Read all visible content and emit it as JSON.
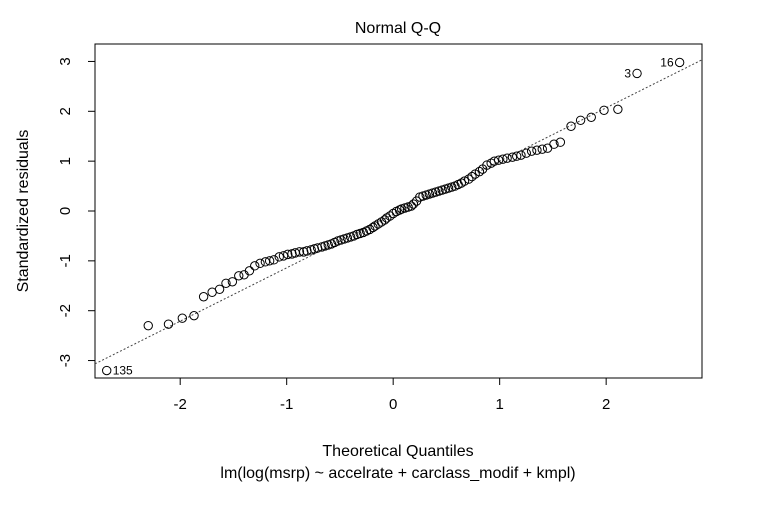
{
  "chart_data": {
    "type": "scatter",
    "title": "Normal Q-Q",
    "xlabel": "Theoretical Quantiles",
    "ylabel": "Standardized residuals",
    "subtitle": "lm(log(msrp) ~ accelrate + carclass_modif + kmpl)",
    "xlim": [
      -2.8,
      2.9
    ],
    "ylim": [
      -3.35,
      3.35
    ],
    "x_ticks": [
      -2,
      -1,
      0,
      1,
      2
    ],
    "y_ticks": [
      -3,
      -2,
      -1,
      0,
      1,
      2,
      3
    ],
    "x_tick_labels": [
      "-2",
      "-1",
      "0",
      "1",
      "2"
    ],
    "y_tick_labels": [
      "-3",
      "-2",
      "-1",
      "0",
      "1",
      "2",
      "3"
    ],
    "grid": false,
    "reference_line": {
      "slope": 1.07,
      "intercept": -0.07,
      "style": "dotted"
    },
    "labeled_points": [
      {
        "label": "135",
        "x": -2.69,
        "y": -3.2,
        "side": "right"
      },
      {
        "label": "3",
        "x": 2.29,
        "y": 2.76,
        "side": "left"
      },
      {
        "label": "16",
        "x": 2.69,
        "y": 2.98,
        "side": "left"
      }
    ],
    "points": [
      [
        -2.69,
        -3.2
      ],
      [
        -2.3,
        -2.3
      ],
      [
        -2.11,
        -2.27
      ],
      [
        -1.98,
        -2.15
      ],
      [
        -1.87,
        -2.1
      ],
      [
        -1.78,
        -1.72
      ],
      [
        -1.7,
        -1.63
      ],
      [
        -1.63,
        -1.57
      ],
      [
        -1.57,
        -1.45
      ],
      [
        -1.51,
        -1.42
      ],
      [
        -1.45,
        -1.3
      ],
      [
        -1.4,
        -1.28
      ],
      [
        -1.35,
        -1.2
      ],
      [
        -1.3,
        -1.1
      ],
      [
        -1.25,
        -1.05
      ],
      [
        -1.2,
        -1.02
      ],
      [
        -1.16,
        -1.0
      ],
      [
        -1.12,
        -0.98
      ],
      [
        -1.07,
        -0.92
      ],
      [
        -1.03,
        -0.9
      ],
      [
        -0.99,
        -0.87
      ],
      [
        -0.95,
        -0.86
      ],
      [
        -0.92,
        -0.84
      ],
      [
        -0.88,
        -0.82
      ],
      [
        -0.84,
        -0.82
      ],
      [
        -0.81,
        -0.8
      ],
      [
        -0.77,
        -0.78
      ],
      [
        -0.74,
        -0.76
      ],
      [
        -0.71,
        -0.74
      ],
      [
        -0.67,
        -0.72
      ],
      [
        -0.64,
        -0.7
      ],
      [
        -0.61,
        -0.68
      ],
      [
        -0.58,
        -0.66
      ],
      [
        -0.55,
        -0.63
      ],
      [
        -0.52,
        -0.6
      ],
      [
        -0.49,
        -0.58
      ],
      [
        -0.46,
        -0.56
      ],
      [
        -0.43,
        -0.54
      ],
      [
        -0.4,
        -0.52
      ],
      [
        -0.37,
        -0.5
      ],
      [
        -0.34,
        -0.47
      ],
      [
        -0.31,
        -0.45
      ],
      [
        -0.28,
        -0.43
      ],
      [
        -0.25,
        -0.4
      ],
      [
        -0.22,
        -0.37
      ],
      [
        -0.19,
        -0.33
      ],
      [
        -0.17,
        -0.3
      ],
      [
        -0.14,
        -0.26
      ],
      [
        -0.11,
        -0.22
      ],
      [
        -0.08,
        -0.18
      ],
      [
        -0.06,
        -0.14
      ],
      [
        -0.03,
        -0.1
      ],
      [
        0.0,
        -0.05
      ],
      [
        0.03,
        -0.01
      ],
      [
        0.06,
        0.02
      ],
      [
        0.08,
        0.04
      ],
      [
        0.11,
        0.06
      ],
      [
        0.14,
        0.08
      ],
      [
        0.17,
        0.1
      ],
      [
        0.19,
        0.14
      ],
      [
        0.22,
        0.2
      ],
      [
        0.25,
        0.28
      ],
      [
        0.28,
        0.3
      ],
      [
        0.31,
        0.32
      ],
      [
        0.34,
        0.34
      ],
      [
        0.37,
        0.36
      ],
      [
        0.4,
        0.38
      ],
      [
        0.43,
        0.4
      ],
      [
        0.46,
        0.42
      ],
      [
        0.49,
        0.44
      ],
      [
        0.52,
        0.46
      ],
      [
        0.55,
        0.48
      ],
      [
        0.58,
        0.5
      ],
      [
        0.61,
        0.53
      ],
      [
        0.64,
        0.56
      ],
      [
        0.67,
        0.6
      ],
      [
        0.71,
        0.64
      ],
      [
        0.74,
        0.69
      ],
      [
        0.77,
        0.74
      ],
      [
        0.81,
        0.79
      ],
      [
        0.84,
        0.84
      ],
      [
        0.88,
        0.92
      ],
      [
        0.92,
        0.96
      ],
      [
        0.95,
        1.0
      ],
      [
        0.99,
        1.02
      ],
      [
        1.03,
        1.04
      ],
      [
        1.07,
        1.06
      ],
      [
        1.12,
        1.08
      ],
      [
        1.16,
        1.1
      ],
      [
        1.2,
        1.12
      ],
      [
        1.25,
        1.16
      ],
      [
        1.3,
        1.2
      ],
      [
        1.35,
        1.22
      ],
      [
        1.4,
        1.24
      ],
      [
        1.45,
        1.26
      ],
      [
        1.51,
        1.34
      ],
      [
        1.57,
        1.38
      ],
      [
        1.67,
        1.7
      ],
      [
        1.76,
        1.82
      ],
      [
        1.86,
        1.88
      ],
      [
        1.98,
        2.02
      ],
      [
        2.11,
        2.04
      ],
      [
        2.29,
        2.76
      ],
      [
        2.69,
        2.98
      ]
    ]
  }
}
